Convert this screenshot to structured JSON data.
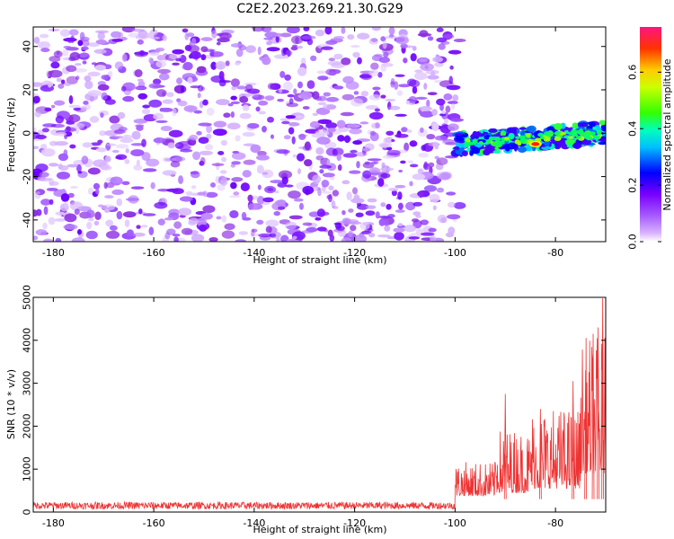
{
  "figure": {
    "title": "C2E2.2023.269.21.30.G29"
  },
  "chart_data": [
    {
      "type": "heatmap",
      "xlabel": "Height of straight line (km)",
      "ylabel": "Frequency (Hz)",
      "xlim": [
        -184,
        -70
      ],
      "ylim": [
        -50,
        49
      ],
      "x_ticks": [
        -180,
        -160,
        -140,
        -120,
        -100,
        -80
      ],
      "y_ticks": [
        -40,
        -20,
        0,
        20,
        40
      ],
      "colorbar": {
        "label": "Normalized spectral amplitude",
        "range": [
          0,
          0.76
        ],
        "ticks": [
          0.0,
          0.2,
          0.4,
          0.6
        ],
        "colormap": [
          "#ffffff",
          "#d9b3ff",
          "#8a2be2",
          "#5a00ff",
          "#0000ff",
          "#00ffff",
          "#00ff00",
          "#ffff00",
          "#ff0000",
          "#ff1493"
        ]
      },
      "description_regions": [
        {
          "x_range": [
            -184,
            -100
          ],
          "y_range": [
            -50,
            49
          ],
          "amplitude": 0.1
        },
        {
          "x_range": [
            -100,
            -70
          ],
          "y_range": [
            -8,
            5
          ],
          "amplitude": 0.35
        },
        {
          "x_point": -84,
          "y_point": -5,
          "amplitude": 0.76
        }
      ]
    },
    {
      "type": "line",
      "xlabel": "Height of straight line (km)",
      "ylabel": "SNR (10 * v/v)",
      "xlim": [
        -184,
        -70
      ],
      "ylim": [
        0,
        5000
      ],
      "x_ticks": [
        -180,
        -160,
        -140,
        -120,
        -100,
        -80
      ],
      "y_ticks": [
        0,
        1000,
        2000,
        3000,
        4000,
        5000
      ],
      "color": "#ee3333",
      "baseline_profile": [
        {
          "x_range": [
            -184,
            -100
          ],
          "mean": 150,
          "amplitude": 140
        },
        {
          "x_range": [
            -100,
            -92
          ],
          "mean": 750,
          "amplitude": 800
        },
        {
          "x_range": [
            -92,
            -85
          ],
          "mean": 900,
          "amplitude": 1500
        },
        {
          "x_range": [
            -85,
            -75
          ],
          "mean": 1100,
          "amplitude": 1900
        },
        {
          "x_range": [
            -75,
            -70
          ],
          "mean": 1800,
          "amplitude": 3200
        }
      ],
      "peaks": [
        {
          "x": -90,
          "y": 2750
        },
        {
          "x": -83,
          "y": 2400
        },
        {
          "x": -76.5,
          "y": 3050
        },
        {
          "x": -74,
          "y": 3300
        },
        {
          "x": -72.5,
          "y": 4150
        },
        {
          "x": -71.5,
          "y": 4300
        },
        {
          "x": -70.6,
          "y": 4980
        }
      ]
    }
  ]
}
